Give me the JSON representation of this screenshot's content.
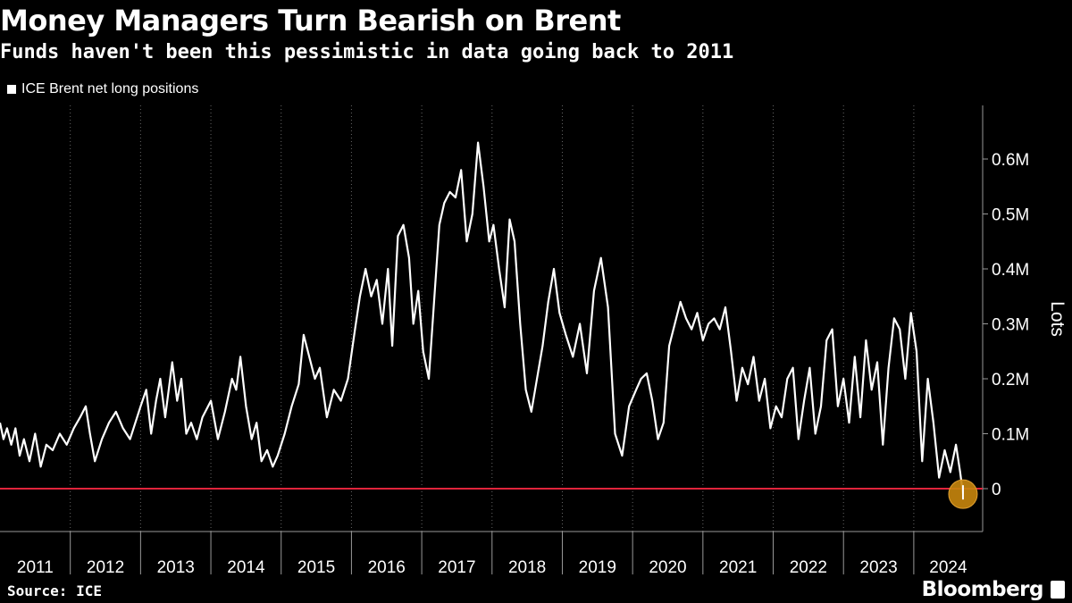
{
  "title": "Money Managers Turn Bearish on Brent",
  "subtitle": "Funds haven't been this pessimistic in data going back to 2011",
  "source": "Source: ICE",
  "brand": "Bloomberg",
  "colors": {
    "line": "#ffffff",
    "zero_line": "#e0243b",
    "highlight": "#c8860d",
    "grid": "#666666"
  },
  "chart_data": {
    "type": "line",
    "title": "Money Managers Turn Bearish on Brent",
    "subtitle": "Funds haven't been this pessimistic in data going back to 2011",
    "ylabel": "Lots",
    "xlabel": "",
    "ylim": [
      -0.08,
      0.7
    ],
    "y_ticks": [
      0,
      0.1,
      0.2,
      0.3,
      0.4,
      0.5,
      0.6
    ],
    "y_tick_labels": [
      "0",
      "0.1M",
      "0.2M",
      "0.3M",
      "0.4M",
      "0.5M",
      "0.6M"
    ],
    "xlim": [
      2011,
      2024.98
    ],
    "x_ticks": [
      "2011",
      "2012",
      "2013",
      "2014",
      "2015",
      "2016",
      "2017",
      "2018",
      "2019",
      "2020",
      "2021",
      "2022",
      "2023",
      "2024"
    ],
    "grid": "vertical dotted",
    "legend": "top-left",
    "reference_line": {
      "y": 0,
      "color": "#e0243b"
    },
    "highlight_point": {
      "x": 2024.7,
      "y": -0.01
    },
    "series": [
      {
        "name": "ICE Brent net long positions",
        "unit": "million lots",
        "x": [
          2011.0,
          2011.05,
          2011.1,
          2011.16,
          2011.22,
          2011.28,
          2011.34,
          2011.42,
          2011.5,
          2011.58,
          2011.66,
          2011.75,
          2011.85,
          2011.95,
          2012.05,
          2012.14,
          2012.22,
          2012.28,
          2012.35,
          2012.45,
          2012.55,
          2012.65,
          2012.75,
          2012.85,
          2013.0,
          2013.08,
          2013.15,
          2013.22,
          2013.28,
          2013.35,
          2013.45,
          2013.52,
          2013.58,
          2013.65,
          2013.72,
          2013.8,
          2013.88,
          2014.0,
          2014.1,
          2014.2,
          2014.3,
          2014.36,
          2014.42,
          2014.5,
          2014.58,
          2014.65,
          2014.72,
          2014.8,
          2014.88,
          2014.95,
          2015.05,
          2015.15,
          2015.25,
          2015.32,
          2015.4,
          2015.48,
          2015.55,
          2015.65,
          2015.75,
          2015.85,
          2015.95,
          2016.05,
          2016.12,
          2016.2,
          2016.28,
          2016.36,
          2016.44,
          2016.52,
          2016.58,
          2016.66,
          2016.74,
          2016.82,
          2016.88,
          2016.95,
          2017.02,
          2017.1,
          2017.18,
          2017.25,
          2017.32,
          2017.4,
          2017.48,
          2017.56,
          2017.64,
          2017.72,
          2017.8,
          2017.88,
          2017.96,
          2018.02,
          2018.1,
          2018.18,
          2018.25,
          2018.32,
          2018.4,
          2018.48,
          2018.56,
          2018.64,
          2018.72,
          2018.8,
          2018.88,
          2018.96,
          2019.05,
          2019.15,
          2019.25,
          2019.35,
          2019.45,
          2019.55,
          2019.65,
          2019.75,
          2019.85,
          2019.95,
          2020.05,
          2020.12,
          2020.2,
          2020.28,
          2020.36,
          2020.44,
          2020.52,
          2020.6,
          2020.68,
          2020.76,
          2020.84,
          2020.92,
          2021.0,
          2021.08,
          2021.16,
          2021.24,
          2021.32,
          2021.4,
          2021.48,
          2021.56,
          2021.64,
          2021.72,
          2021.8,
          2021.88,
          2021.96,
          2022.04,
          2022.12,
          2022.2,
          2022.28,
          2022.36,
          2022.44,
          2022.52,
          2022.6,
          2022.68,
          2022.76,
          2022.84,
          2022.92,
          2023.0,
          2023.08,
          2023.16,
          2023.24,
          2023.32,
          2023.4,
          2023.48,
          2023.56,
          2023.64,
          2023.72,
          2023.8,
          2023.88,
          2023.96,
          2024.04,
          2024.12,
          2024.2,
          2024.28,
          2024.36,
          2024.44,
          2024.52,
          2024.6,
          2024.66,
          2024.7
        ],
        "y": [
          0.12,
          0.09,
          0.11,
          0.08,
          0.11,
          0.06,
          0.09,
          0.05,
          0.1,
          0.04,
          0.08,
          0.07,
          0.1,
          0.08,
          0.11,
          0.13,
          0.15,
          0.1,
          0.05,
          0.09,
          0.12,
          0.14,
          0.11,
          0.09,
          0.15,
          0.18,
          0.1,
          0.16,
          0.2,
          0.13,
          0.23,
          0.16,
          0.2,
          0.1,
          0.12,
          0.09,
          0.13,
          0.16,
          0.09,
          0.14,
          0.2,
          0.18,
          0.24,
          0.15,
          0.09,
          0.12,
          0.05,
          0.07,
          0.04,
          0.06,
          0.1,
          0.15,
          0.19,
          0.28,
          0.24,
          0.2,
          0.22,
          0.13,
          0.18,
          0.16,
          0.2,
          0.29,
          0.35,
          0.4,
          0.35,
          0.38,
          0.3,
          0.4,
          0.26,
          0.46,
          0.48,
          0.42,
          0.3,
          0.36,
          0.25,
          0.2,
          0.35,
          0.48,
          0.52,
          0.54,
          0.53,
          0.58,
          0.45,
          0.5,
          0.63,
          0.55,
          0.45,
          0.48,
          0.4,
          0.33,
          0.49,
          0.45,
          0.3,
          0.18,
          0.14,
          0.2,
          0.26,
          0.34,
          0.4,
          0.32,
          0.28,
          0.24,
          0.3,
          0.21,
          0.36,
          0.42,
          0.33,
          0.1,
          0.06,
          0.15,
          0.18,
          0.2,
          0.21,
          0.16,
          0.09,
          0.12,
          0.26,
          0.3,
          0.34,
          0.31,
          0.29,
          0.32,
          0.27,
          0.3,
          0.31,
          0.29,
          0.33,
          0.25,
          0.16,
          0.22,
          0.19,
          0.24,
          0.16,
          0.2,
          0.11,
          0.15,
          0.13,
          0.2,
          0.22,
          0.09,
          0.16,
          0.22,
          0.1,
          0.15,
          0.27,
          0.29,
          0.15,
          0.2,
          0.12,
          0.24,
          0.13,
          0.27,
          0.18,
          0.23,
          0.08,
          0.22,
          0.31,
          0.29,
          0.2,
          0.32,
          0.25,
          0.05,
          0.2,
          0.12,
          0.02,
          0.07,
          0.03,
          0.08,
          0.03,
          -0.01
        ]
      }
    ]
  }
}
